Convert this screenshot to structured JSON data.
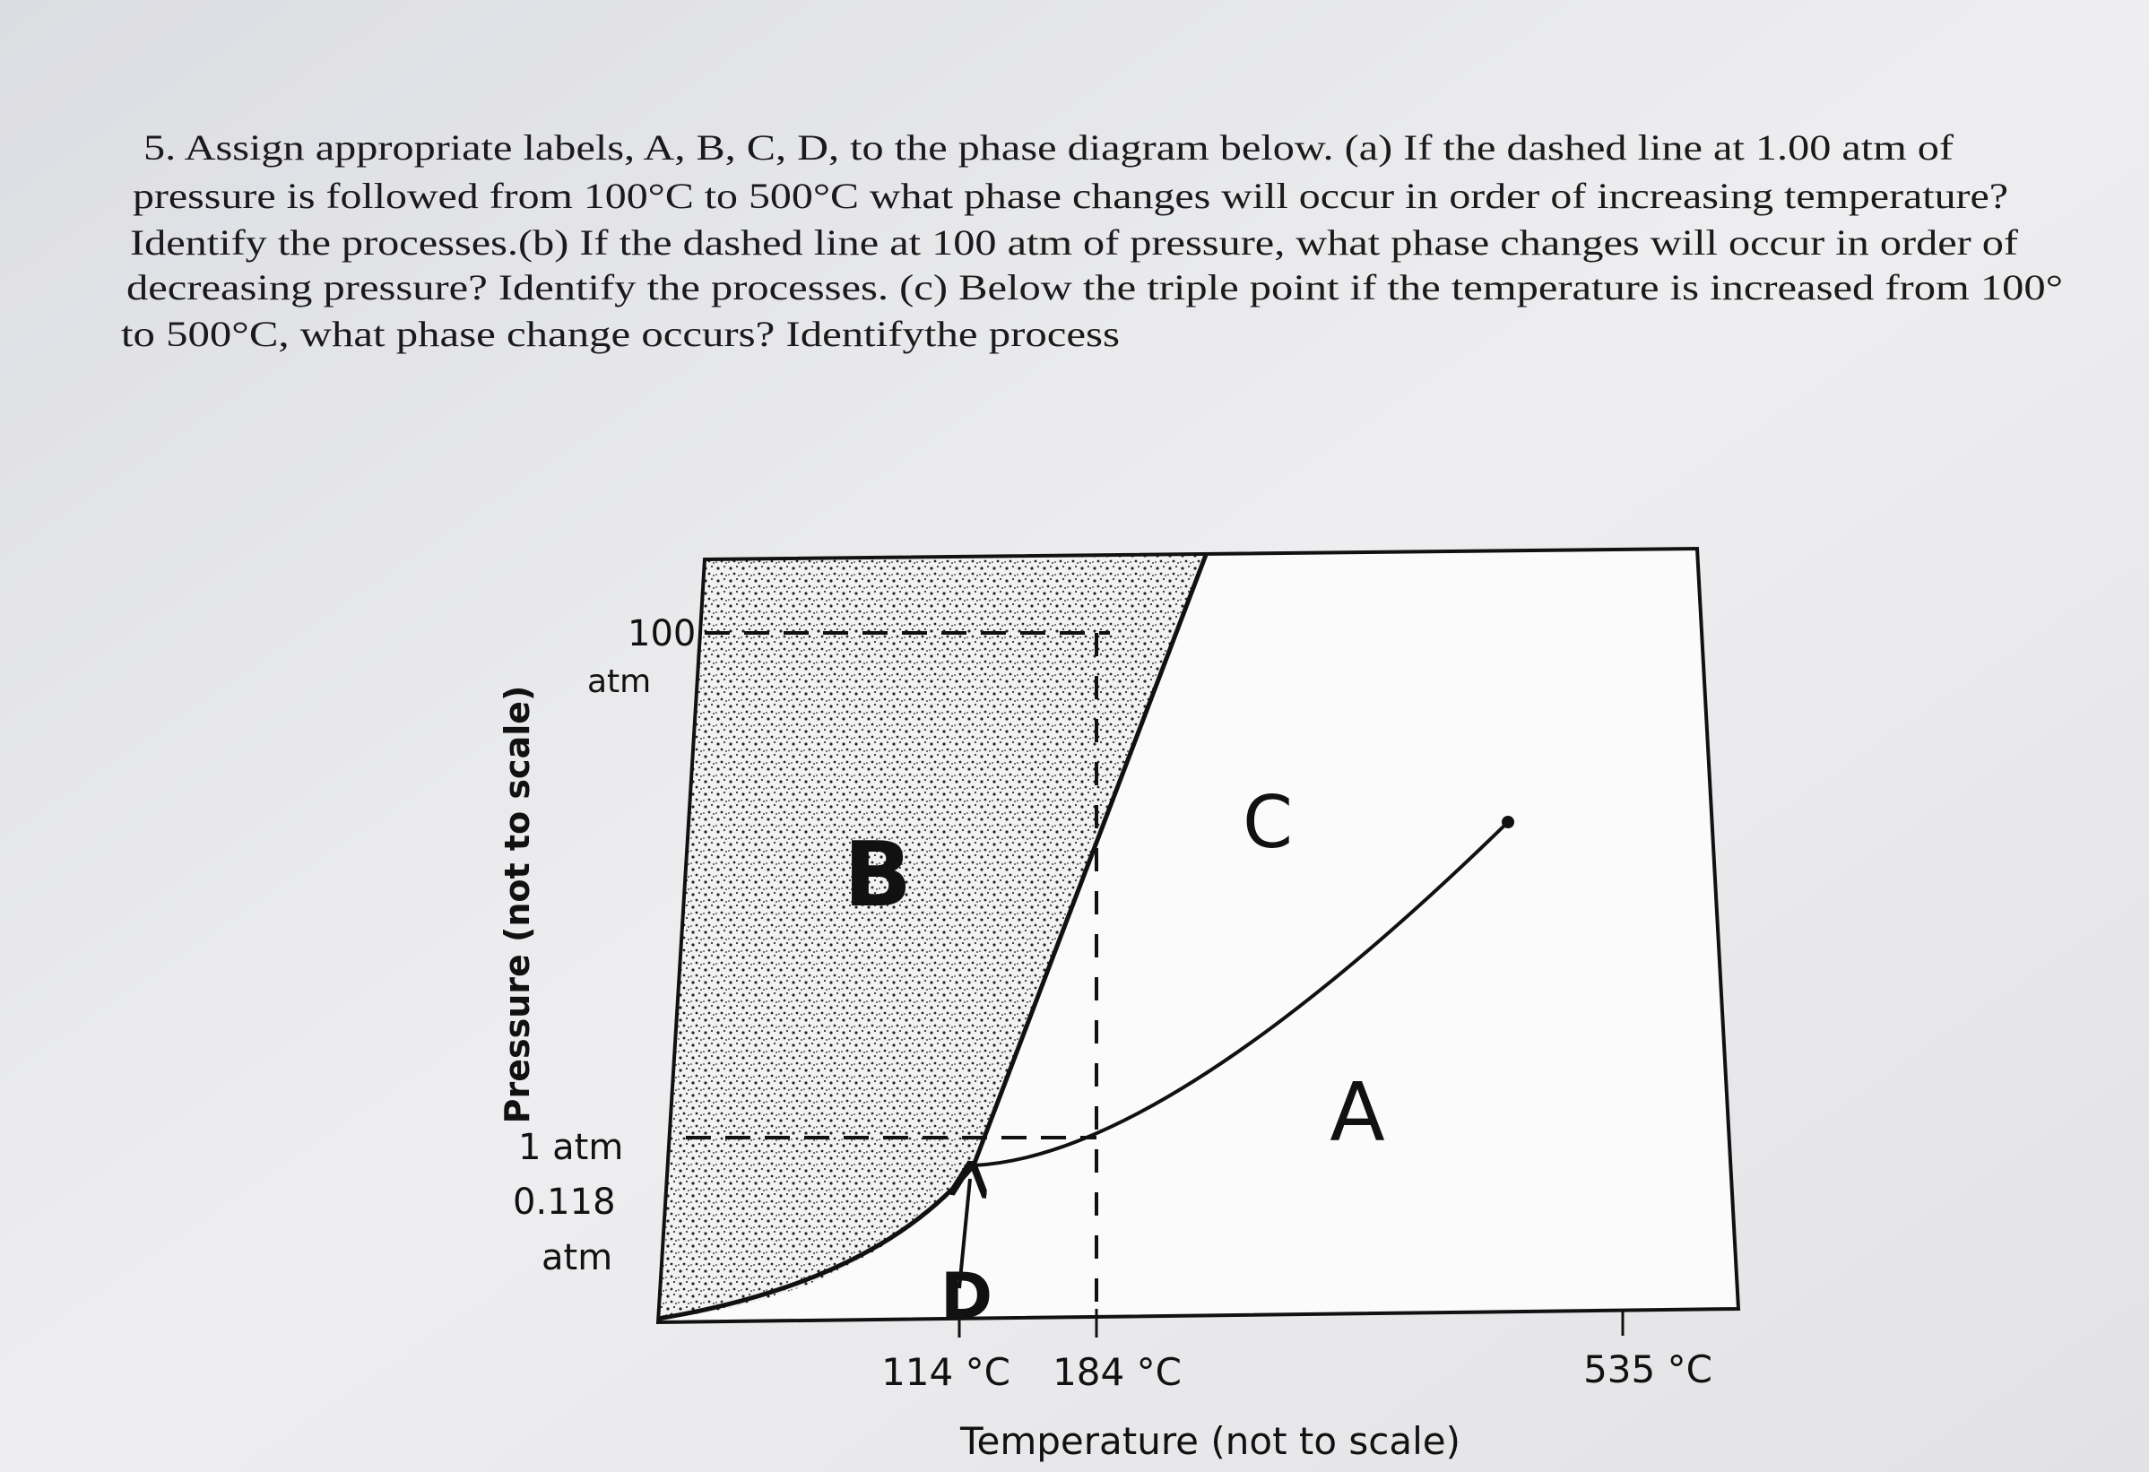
{
  "question": {
    "lines": [
      "5. Assign appropriate labels, A, B, C, D, to the phase diagram below.  (a) If the dashed line at 1.00 atm of",
      "pressure is followed from 100°C to 500°C what phase changes will occur in order of increasing temperature?",
      "Identify the processes.(b) If the dashed line at 100 atm of pressure, what phase changes will occur in order of",
      "decreasing pressure? Identify the processes. (c)  Below the triple point if the temperature is increased from 100°",
      "to 500°C, what phase change occurs? Identifythe process"
    ]
  },
  "diagram": {
    "y_axis_label": "Pressure (not to scale)",
    "x_axis_label": "Temperature (not to scale)",
    "pressure_labels": [
      {
        "value": "100",
        "unit": "atm"
      },
      {
        "value": "1 atm"
      },
      {
        "value": "0.118",
        "unit": "atm"
      }
    ],
    "temperature_labels": [
      "114 °C",
      "184 °C",
      "535 °C"
    ],
    "region_labels": [
      "B",
      "C",
      "A",
      "D"
    ]
  }
}
